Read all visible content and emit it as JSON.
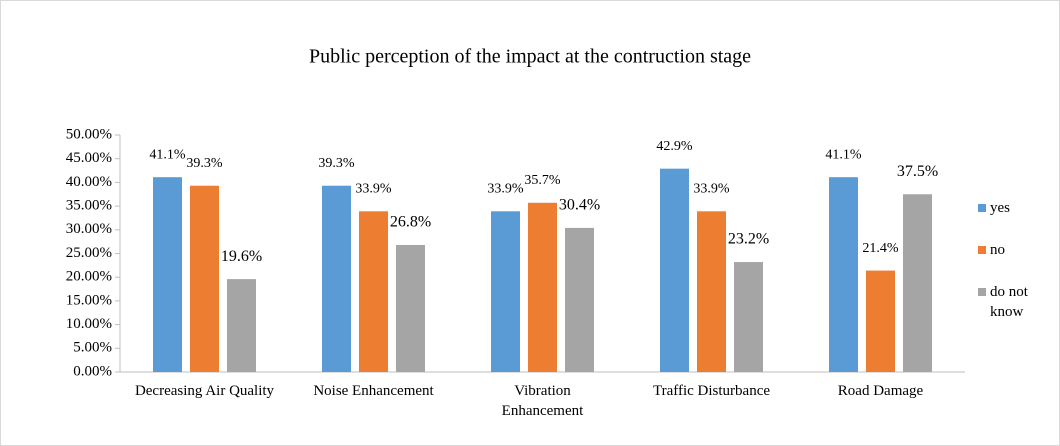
{
  "chart_data": {
    "type": "bar",
    "title": "Public perception of the impact at the contruction stage",
    "categories": [
      "Decreasing Air Quality",
      "Noise Enhancement",
      "Vibration Enhancement",
      "Traffic Disturbance",
      "Road Damage"
    ],
    "series": [
      {
        "name": "yes",
        "color": "#5b9bd5",
        "values": [
          41.1,
          39.3,
          33.9,
          42.9,
          41.1
        ],
        "value_labels": [
          "41.1%",
          "39.3%",
          "33.9%",
          "42.9%",
          "41.1%"
        ]
      },
      {
        "name": "no",
        "color": "#ed7d31",
        "values": [
          39.3,
          33.9,
          35.7,
          33.9,
          21.4
        ],
        "value_labels": [
          "39.3%",
          "33.9%",
          "35.7%",
          "33.9%",
          "21.4%"
        ]
      },
      {
        "name": "do not know",
        "color": "#a5a5a5",
        "values": [
          19.6,
          26.8,
          30.4,
          23.2,
          37.5
        ],
        "value_labels": [
          "19.6%",
          "26.8%",
          "30.4%",
          "23.2%",
          "37.5%"
        ]
      }
    ],
    "ylim": [
      0,
      50
    ],
    "yticks": [
      {
        "value": 0,
        "label": "0.00%"
      },
      {
        "value": 5,
        "label": "5.00%"
      },
      {
        "value": 10,
        "label": "10.00%"
      },
      {
        "value": 15,
        "label": "15.00%"
      },
      {
        "value": 20,
        "label": "20.00%"
      },
      {
        "value": 25,
        "label": "25.00%"
      },
      {
        "value": 30,
        "label": "30.00%"
      },
      {
        "value": 35,
        "label": "35.00%"
      },
      {
        "value": 40,
        "label": "40.00%"
      },
      {
        "value": 45,
        "label": "45.00%"
      },
      {
        "value": 50,
        "label": "50.00%"
      }
    ],
    "grid": false,
    "legend": "right"
  }
}
